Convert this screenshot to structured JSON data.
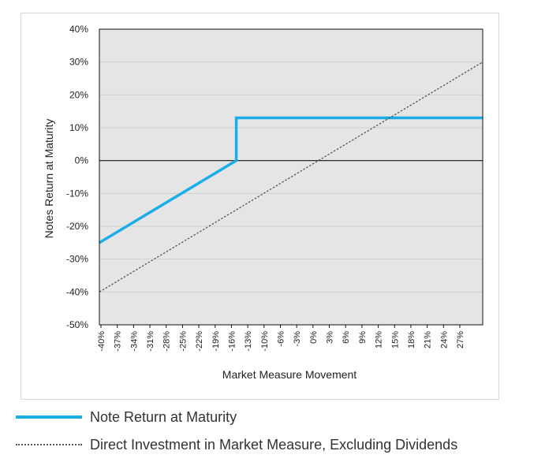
{
  "chart_data": {
    "type": "line",
    "xlabel": "Market Measure Movement",
    "ylabel": "Notes Return at Maturity",
    "x_tick_labels": [
      "-40%",
      "-37%",
      "-34%",
      "-31%",
      "-28%",
      "-25%",
      "-22%",
      "-19%",
      "-16%",
      "-13%",
      "-10%",
      "-6%",
      "-3%",
      "0%",
      "3%",
      "6%",
      "9%",
      "12%",
      "15%",
      "18%",
      "21%",
      "24%",
      "27%"
    ],
    "y_tick_labels": [
      "40%",
      "30%",
      "20%",
      "10%",
      "0%",
      "-10%",
      "-20%",
      "-30%",
      "-40%",
      "-50%"
    ],
    "xlim": [
      -40,
      30
    ],
    "ylim": [
      -50,
      40
    ],
    "grid": "horizontal",
    "legend_position": "bottom",
    "series": [
      {
        "name": "Note Return at Maturity",
        "color": "#19aee6",
        "style": "solid",
        "points": [
          [
            -40,
            -25
          ],
          [
            -15,
            0
          ],
          [
            -15,
            13
          ],
          [
            30,
            13
          ]
        ]
      },
      {
        "name": "Direct Investment in Market Measure, Excluding Dividends",
        "color": "#555555",
        "style": "dotted",
        "points": [
          [
            -40,
            -40
          ],
          [
            30,
            30
          ]
        ]
      }
    ]
  },
  "legend": {
    "items": [
      {
        "label": "Note Return at Maturity"
      },
      {
        "label": "Direct Investment in Market Measure, Excluding Dividends"
      }
    ]
  }
}
